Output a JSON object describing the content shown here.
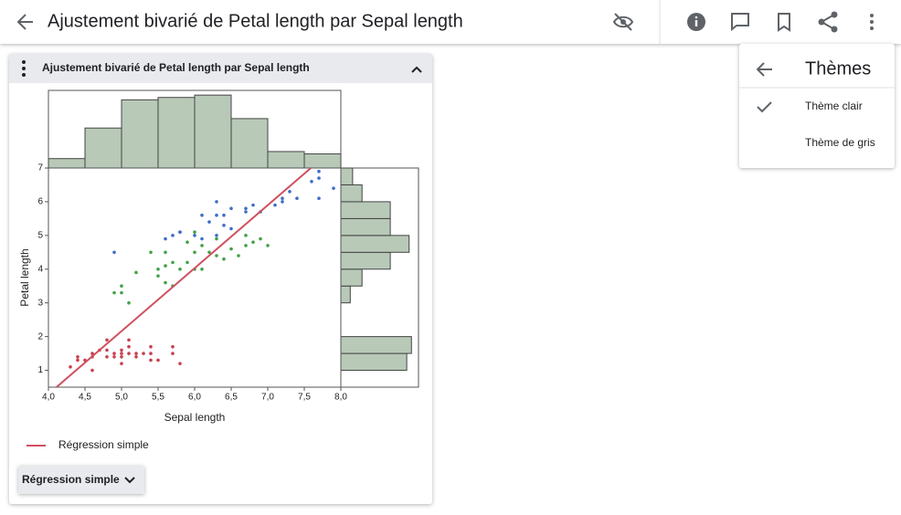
{
  "app_bar": {
    "title": "Ajustement bivarié de Petal length par Sepal length"
  },
  "panel": {
    "title": "Ajustement bivarié de Petal length par Sepal length",
    "button": "Régression simple"
  },
  "menu": {
    "title": "Thèmes",
    "items": [
      "Thème clair",
      "Thème de gris"
    ]
  },
  "chart_data": {
    "type": "scatter",
    "x_label": "Sepal length",
    "y_label": "Petal length",
    "xlim": [
      4.0,
      8.0
    ],
    "ylim": [
      0.5,
      7
    ],
    "xticks": [
      {
        "value": 4.0,
        "label": "4,0"
      },
      {
        "value": 4.5,
        "label": "4,5"
      },
      {
        "value": 5.0,
        "label": "5,0"
      },
      {
        "value": 5.5,
        "label": "5,5"
      },
      {
        "value": 6.0,
        "label": "6,0"
      },
      {
        "value": 6.5,
        "label": "6,5"
      },
      {
        "value": 7.0,
        "label": "7,0"
      },
      {
        "value": 7.5,
        "label": "7,5"
      },
      {
        "value": 8.0,
        "label": "8,0"
      }
    ],
    "yticks": [
      1,
      2,
      3,
      4,
      5,
      6,
      7
    ],
    "series": [
      {
        "color": "#c9414f",
        "x": [
          4.3,
          4.4,
          4.4,
          4.5,
          4.6,
          4.6,
          4.7,
          4.8,
          4.8,
          4.9,
          4.9,
          5.0,
          5.0,
          5.0,
          5.1,
          5.1,
          5.2,
          5.2,
          5.3,
          5.4,
          5.4,
          5.5,
          5.7,
          5.7,
          5.8,
          4.8,
          5.1,
          5.0,
          4.6,
          5.4
        ],
        "y": [
          1.1,
          1.3,
          1.4,
          1.3,
          1.4,
          1.0,
          1.6,
          1.9,
          1.6,
          1.4,
          1.5,
          1.6,
          1.2,
          1.5,
          1.5,
          1.7,
          1.5,
          1.4,
          1.5,
          1.7,
          1.3,
          1.3,
          1.5,
          1.7,
          1.2,
          1.4,
          1.9,
          1.4,
          1.5,
          1.5
        ]
      },
      {
        "color": "#44a048",
        "x": [
          4.9,
          5.0,
          5.0,
          5.1,
          5.2,
          5.5,
          5.5,
          5.6,
          5.6,
          5.7,
          5.7,
          5.8,
          5.9,
          5.9,
          6.0,
          6.0,
          6.1,
          6.1,
          6.2,
          6.3,
          6.3,
          6.4,
          6.5,
          6.6,
          6.7,
          6.7,
          6.8,
          6.9,
          7.0,
          5.4,
          5.6,
          6.0
        ],
        "y": [
          3.3,
          3.5,
          3.3,
          3.0,
          3.9,
          4.0,
          3.8,
          3.6,
          4.5,
          4.2,
          3.5,
          4.0,
          4.2,
          4.8,
          4.0,
          5.1,
          4.7,
          4.0,
          4.5,
          4.4,
          4.9,
          4.3,
          4.6,
          4.4,
          4.7,
          5.0,
          4.8,
          4.9,
          4.7,
          4.5,
          4.1,
          4.5
        ]
      },
      {
        "color": "#3e6dc8",
        "x": [
          4.9,
          5.6,
          5.7,
          5.8,
          5.8,
          6.0,
          6.1,
          6.2,
          6.3,
          6.3,
          6.4,
          6.4,
          6.5,
          6.5,
          6.7,
          6.7,
          6.8,
          6.9,
          7.1,
          7.2,
          7.2,
          7.3,
          7.4,
          7.6,
          7.7,
          7.7,
          7.7,
          7.9,
          6.3,
          6.1
        ],
        "y": [
          4.5,
          4.9,
          5.0,
          5.1,
          5.1,
          5.0,
          5.6,
          5.4,
          6.0,
          5.6,
          5.3,
          5.6,
          5.8,
          5.2,
          5.7,
          5.8,
          5.9,
          5.7,
          5.9,
          6.1,
          6.0,
          6.3,
          6.1,
          6.6,
          6.7,
          6.9,
          6.1,
          6.4,
          5.0,
          4.9
        ]
      }
    ],
    "regression": {
      "name": "Régression simple",
      "color": "#d0505f",
      "x": [
        4.11,
        7.59
      ],
      "y": [
        0.5,
        7.0
      ]
    },
    "x_histogram": {
      "color": "#b8c9b8",
      "bins": [
        4.0,
        4.5,
        5.0,
        5.5,
        6.0,
        6.5,
        7.0,
        7.5,
        8.0
      ],
      "counts": [
        4,
        17,
        29,
        30,
        31,
        21,
        7,
        6
      ],
      "hlim": [
        0,
        33
      ]
    },
    "y_histogram": {
      "color": "#b8c9b8",
      "bins": [
        1.0,
        1.5,
        2.0,
        2.5,
        3.0,
        3.5,
        4.0,
        4.5,
        5.0,
        5.5,
        6.0,
        6.5,
        7.0
      ],
      "counts": [
        28,
        30,
        0,
        0,
        4,
        9,
        21,
        29,
        21,
        21,
        9,
        5
      ],
      "hlim": [
        0,
        33
      ]
    }
  }
}
